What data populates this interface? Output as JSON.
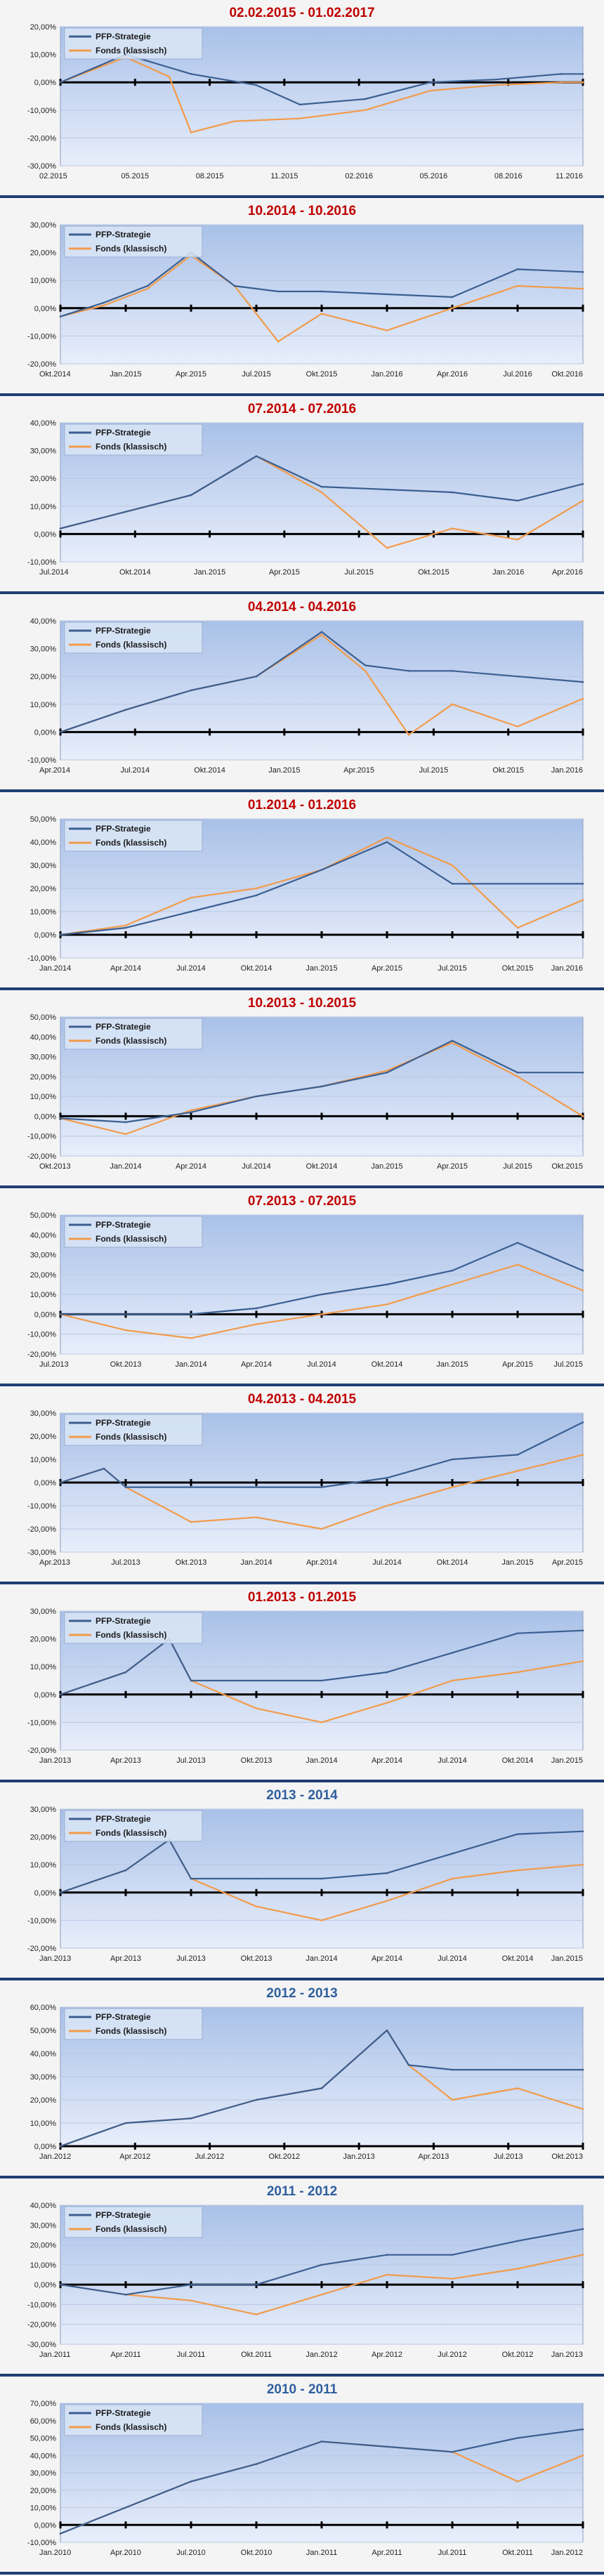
{
  "colors": {
    "strategy": "#3b5f91",
    "fund": "#f29b4b",
    "title_red": "#c00000",
    "title_blue": "#2f5f9e",
    "plot_top": "#a9c1e8",
    "plot_bottom": "#e8eefb",
    "frame": "#1f3f73"
  },
  "legend": {
    "strategy": "PFP-Strategie",
    "fund": "Fonds (klassisch)"
  },
  "chart_data": [
    {
      "type": "line",
      "title": "02.02.2015 - 01.02.2017",
      "title_color": "red",
      "ylim": [
        -30,
        20
      ],
      "ystep": 10,
      "yticks": [
        "20,00%",
        "10,00%",
        "0,00%",
        "-10,00%",
        "-20,00%",
        "-30,00%"
      ],
      "xticks": [
        "02.2015",
        "05.2015",
        "08.2015",
        "11.2015",
        "02.2016",
        "05.2016",
        "08.2016",
        "11.2016"
      ],
      "series": [
        {
          "name": "PFP-Strategie",
          "key": "strategy",
          "x": [
            0,
            3,
            6,
            9,
            11,
            14,
            17,
            20,
            23,
            24
          ],
          "values": [
            0,
            10,
            3,
            -1,
            -8,
            -6,
            0,
            1,
            3,
            3
          ]
        },
        {
          "name": "Fonds (klassisch)",
          "key": "fund",
          "x": [
            0,
            3,
            5,
            6,
            8,
            11,
            14,
            17,
            20,
            23,
            24
          ],
          "values": [
            0,
            9,
            2,
            -18,
            -14,
            -13,
            -10,
            -3,
            -1,
            0,
            0
          ]
        }
      ]
    },
    {
      "type": "line",
      "title": "10.2014 - 10.2016",
      "title_color": "red",
      "ylim": [
        -20,
        30
      ],
      "ystep": 10,
      "yticks": [
        "30,00%",
        "20,00%",
        "10,00%",
        "0,00%",
        "-10,00%",
        "-20,00%"
      ],
      "xticks": [
        "Okt.2014",
        "Jan.2015",
        "Apr.2015",
        "Jul.2015",
        "Okt.2015",
        "Jan.2016",
        "Apr.2016",
        "Jul.2016",
        "Okt.2016"
      ],
      "series": [
        {
          "name": "PFP-Strategie",
          "key": "strategy",
          "x": [
            0,
            2,
            4,
            6,
            8,
            10,
            12,
            15,
            18,
            21,
            24
          ],
          "values": [
            -3,
            2,
            8,
            20,
            8,
            6,
            6,
            5,
            4,
            14,
            13
          ]
        },
        {
          "name": "Fonds (klassisch)",
          "key": "fund",
          "x": [
            0,
            2,
            4,
            6,
            8,
            10,
            12,
            15,
            18,
            21,
            24
          ],
          "values": [
            -3,
            1,
            7,
            19,
            8,
            -12,
            -2,
            -8,
            0,
            8,
            7
          ]
        }
      ]
    },
    {
      "type": "line",
      "title": "07.2014 - 07.2016",
      "title_color": "red",
      "ylim": [
        -10,
        40
      ],
      "ystep": 10,
      "yticks": [
        "40,00%",
        "30,00%",
        "20,00%",
        "10,00%",
        "0,00%",
        "-10,00%"
      ],
      "xticks": [
        "Jul.2014",
        "Okt.2014",
        "Jan.2015",
        "Apr.2015",
        "Jul.2015",
        "Okt.2015",
        "Jan.2016",
        "Apr.2016"
      ],
      "series": [
        {
          "name": "PFP-Strategie",
          "key": "strategy",
          "x": [
            0,
            3,
            6,
            9,
            12,
            15,
            18,
            21,
            24
          ],
          "values": [
            2,
            8,
            14,
            28,
            17,
            16,
            15,
            12,
            18
          ]
        },
        {
          "name": "Fonds (klassisch)",
          "key": "fund",
          "x": [
            0,
            3,
            6,
            9,
            12,
            15,
            18,
            21,
            24
          ],
          "values": [
            2,
            8,
            14,
            28,
            15,
            -5,
            2,
            -2,
            12
          ]
        }
      ]
    },
    {
      "type": "line",
      "title": "04.2014 - 04.2016",
      "title_color": "red",
      "ylim": [
        -10,
        40
      ],
      "ystep": 10,
      "yticks": [
        "40,00%",
        "30,00%",
        "20,00%",
        "10,00%",
        "0,00%",
        "-10,00%"
      ],
      "xticks": [
        "Apr.2014",
        "Jul.2014",
        "Okt.2014",
        "Jan.2015",
        "Apr.2015",
        "Jul.2015",
        "Okt.2015",
        "Jan.2016"
      ],
      "series": [
        {
          "name": "PFP-Strategie",
          "key": "strategy",
          "x": [
            0,
            3,
            6,
            9,
            12,
            14,
            16,
            18,
            21,
            24
          ],
          "values": [
            0,
            8,
            15,
            20,
            36,
            24,
            22,
            22,
            20,
            18
          ]
        },
        {
          "name": "Fonds (klassisch)",
          "key": "fund",
          "x": [
            0,
            3,
            6,
            9,
            12,
            14,
            16,
            18,
            21,
            24
          ],
          "values": [
            0,
            8,
            15,
            20,
            35,
            22,
            -1,
            10,
            2,
            12
          ]
        }
      ]
    },
    {
      "type": "line",
      "title": "01.2014 - 01.2016",
      "title_color": "red",
      "ylim": [
        -10,
        50
      ],
      "ystep": 10,
      "yticks": [
        "50,00%",
        "40,00%",
        "30,00%",
        "20,00%",
        "10,00%",
        "0,00%",
        "-10,00%"
      ],
      "xticks": [
        "Jan.2014",
        "Apr.2014",
        "Jul.2014",
        "Okt.2014",
        "Jan.2015",
        "Apr.2015",
        "Jul.2015",
        "Okt.2015",
        "Jan.2016"
      ],
      "series": [
        {
          "name": "PFP-Strategie",
          "key": "strategy",
          "x": [
            0,
            3,
            6,
            9,
            12,
            15,
            18,
            21,
            24
          ],
          "values": [
            0,
            3,
            10,
            17,
            28,
            40,
            22,
            22,
            22
          ]
        },
        {
          "name": "Fonds (klassisch)",
          "key": "fund",
          "x": [
            0,
            3,
            6,
            9,
            12,
            15,
            18,
            21,
            24
          ],
          "values": [
            0,
            4,
            16,
            20,
            28,
            42,
            30,
            3,
            15
          ]
        }
      ]
    },
    {
      "type": "line",
      "title": "10.2013 - 10.2015",
      "title_color": "red",
      "ylim": [
        -20,
        50
      ],
      "ystep": 10,
      "yticks": [
        "50,00%",
        "40,00%",
        "30,00%",
        "20,00%",
        "10,00%",
        "0,00%",
        "-10,00%",
        "-20,00%"
      ],
      "xticks": [
        "Okt.2013",
        "Jan.2014",
        "Apr.2014",
        "Jul.2014",
        "Okt.2014",
        "Jan.2015",
        "Apr.2015",
        "Jul.2015",
        "Okt.2015"
      ],
      "series": [
        {
          "name": "PFP-Strategie",
          "key": "strategy",
          "x": [
            0,
            3,
            6,
            9,
            12,
            15,
            18,
            21,
            24
          ],
          "values": [
            -1,
            -3,
            2,
            10,
            15,
            22,
            38,
            22,
            22
          ]
        },
        {
          "name": "Fonds (klassisch)",
          "key": "fund",
          "x": [
            0,
            3,
            6,
            9,
            12,
            15,
            18,
            21,
            24
          ],
          "values": [
            -1,
            -9,
            3,
            10,
            15,
            23,
            37,
            20,
            0
          ]
        }
      ]
    },
    {
      "type": "line",
      "title": "07.2013 - 07.2015",
      "title_color": "red",
      "ylim": [
        -20,
        50
      ],
      "ystep": 10,
      "yticks": [
        "50,00%",
        "40,00%",
        "30,00%",
        "20,00%",
        "10,00%",
        "0,00%",
        "-10,00%",
        "-20,00%"
      ],
      "xticks": [
        "Jul.2013",
        "Okt.2013",
        "Jan.2014",
        "Apr.2014",
        "Jul.2014",
        "Okt.2014",
        "Jan.2015",
        "Apr.2015",
        "Jul.2015"
      ],
      "series": [
        {
          "name": "PFP-Strategie",
          "key": "strategy",
          "x": [
            0,
            3,
            6,
            9,
            12,
            15,
            18,
            21,
            24
          ],
          "values": [
            0,
            0,
            0,
            3,
            10,
            15,
            22,
            36,
            22
          ]
        },
        {
          "name": "Fonds (klassisch)",
          "key": "fund",
          "x": [
            0,
            3,
            6,
            9,
            12,
            15,
            18,
            21,
            24
          ],
          "values": [
            0,
            -8,
            -12,
            -5,
            0,
            5,
            15,
            25,
            12
          ]
        }
      ]
    },
    {
      "type": "line",
      "title": "04.2013 - 04.2015",
      "title_color": "red",
      "ylim": [
        -30,
        30
      ],
      "ystep": 10,
      "yticks": [
        "30,00%",
        "20,00%",
        "10,00%",
        "0,00%",
        "-10,00%",
        "-20,00%",
        "-30,00%"
      ],
      "xticks": [
        "Apr.2013",
        "Jul.2013",
        "Okt.2013",
        "Jan.2014",
        "Apr.2014",
        "Jul.2014",
        "Okt.2014",
        "Jan.2015",
        "Apr.2015"
      ],
      "series": [
        {
          "name": "PFP-Strategie",
          "key": "strategy",
          "x": [
            0,
            2,
            3,
            6,
            9,
            12,
            15,
            18,
            21,
            24
          ],
          "values": [
            0,
            6,
            -2,
            -2,
            -2,
            -2,
            2,
            10,
            12,
            26
          ]
        },
        {
          "name": "Fonds (klassisch)",
          "key": "fund",
          "x": [
            0,
            2,
            3,
            6,
            9,
            12,
            15,
            18,
            21,
            24
          ],
          "values": [
            0,
            6,
            -2,
            -17,
            -15,
            -20,
            -10,
            -2,
            5,
            12
          ]
        }
      ]
    },
    {
      "type": "line",
      "title": "01.2013 - 01.2015",
      "title_color": "red",
      "ylim": [
        -20,
        30
      ],
      "ystep": 10,
      "yticks": [
        "30,00%",
        "20,00%",
        "10,00%",
        "0,00%",
        "-10,00%",
        "-20,00%"
      ],
      "xticks": [
        "Jan.2013",
        "Apr.2013",
        "Jul.2013",
        "Okt.2013",
        "Jan.2014",
        "Apr.2014",
        "Jul.2014",
        "Okt.2014",
        "Jan.2015"
      ],
      "series": [
        {
          "name": "PFP-Strategie",
          "key": "strategy",
          "x": [
            0,
            3,
            5,
            6,
            9,
            12,
            15,
            18,
            21,
            24
          ],
          "values": [
            0,
            8,
            20,
            5,
            5,
            5,
            8,
            15,
            22,
            23
          ]
        },
        {
          "name": "Fonds (klassisch)",
          "key": "fund",
          "x": [
            0,
            3,
            5,
            6,
            9,
            12,
            15,
            18,
            21,
            24
          ],
          "values": [
            0,
            8,
            20,
            5,
            -5,
            -10,
            -3,
            5,
            8,
            12
          ]
        }
      ]
    },
    {
      "type": "line",
      "title": "2013 - 2014",
      "title_color": "blue",
      "ylim": [
        -20,
        30
      ],
      "ystep": 10,
      "yticks": [
        "30,00%",
        "20,00%",
        "10,00%",
        "0,00%",
        "-10,00%",
        "-20,00%"
      ],
      "xticks": [
        "Jan.2013",
        "Apr.2013",
        "Jul.2013",
        "Okt.2013",
        "Jan.2014",
        "Apr.2014",
        "Jul.2014",
        "Okt.2014",
        "Jan.2015"
      ],
      "series": [
        {
          "name": "PFP-Strategie",
          "key": "strategy",
          "x": [
            0,
            3,
            5,
            6,
            9,
            12,
            15,
            18,
            21,
            24
          ],
          "values": [
            0,
            8,
            19,
            5,
            5,
            5,
            7,
            14,
            21,
            22
          ]
        },
        {
          "name": "Fonds (klassisch)",
          "key": "fund",
          "x": [
            0,
            3,
            5,
            6,
            9,
            12,
            15,
            18,
            21,
            24
          ],
          "values": [
            0,
            8,
            19,
            5,
            -5,
            -10,
            -3,
            5,
            8,
            10
          ]
        }
      ]
    },
    {
      "type": "line",
      "title": "2012 - 2013",
      "title_color": "blue",
      "ylim": [
        0,
        60
      ],
      "ystep": 10,
      "yticks": [
        "60,00%",
        "50,00%",
        "40,00%",
        "30,00%",
        "20,00%",
        "10,00%",
        "0,00%"
      ],
      "xticks": [
        "Jan.2012",
        "Apr.2012",
        "Jul.2012",
        "Okt.2012",
        "Jan.2013",
        "Apr.2013",
        "Jul.2013",
        "Okt.2013"
      ],
      "series": [
        {
          "name": "PFP-Strategie",
          "key": "strategy",
          "x": [
            0,
            3,
            6,
            9,
            12,
            15,
            16,
            18,
            21,
            24
          ],
          "values": [
            0,
            10,
            12,
            20,
            25,
            50,
            35,
            33,
            33,
            33
          ]
        },
        {
          "name": "Fonds (klassisch)",
          "key": "fund",
          "x": [
            0,
            3,
            6,
            9,
            12,
            15,
            16,
            18,
            21,
            24
          ],
          "values": [
            0,
            10,
            12,
            20,
            25,
            50,
            35,
            20,
            25,
            16
          ]
        }
      ]
    },
    {
      "type": "line",
      "title": "2011 - 2012",
      "title_color": "blue",
      "ylim": [
        -30,
        40
      ],
      "ystep": 10,
      "yticks": [
        "40,00%",
        "30,00%",
        "20,00%",
        "10,00%",
        "0,00%",
        "-10,00%",
        "-20,00%",
        "-30,00%"
      ],
      "xticks": [
        "Jan.2011",
        "Apr.2011",
        "Jul.2011",
        "Okt.2011",
        "Jan.2012",
        "Apr.2012",
        "Jul.2012",
        "Okt.2012",
        "Jan.2013"
      ],
      "series": [
        {
          "name": "PFP-Strategie",
          "key": "strategy",
          "x": [
            0,
            3,
            6,
            9,
            12,
            15,
            18,
            21,
            24
          ],
          "values": [
            0,
            -5,
            0,
            0,
            10,
            15,
            15,
            22,
            28
          ]
        },
        {
          "name": "Fonds (klassisch)",
          "key": "fund",
          "x": [
            0,
            3,
            6,
            9,
            12,
            15,
            18,
            21,
            24
          ],
          "values": [
            0,
            -5,
            -8,
            -15,
            -5,
            5,
            3,
            8,
            15
          ]
        }
      ]
    },
    {
      "type": "line",
      "title": "2010 - 2011",
      "title_color": "blue",
      "ylim": [
        -10,
        70
      ],
      "ystep": 10,
      "yticks": [
        "70,00%",
        "60,00%",
        "50,00%",
        "40,00%",
        "30,00%",
        "20,00%",
        "10,00%",
        "0,00%",
        "-10,00%"
      ],
      "xticks": [
        "Jan.2010",
        "Apr.2010",
        "Jul.2010",
        "Okt.2010",
        "Jan.2011",
        "Apr.2011",
        "Jul.2011",
        "Okt.2011",
        "Jan.2012"
      ],
      "series": [
        {
          "name": "PFP-Strategie",
          "key": "strategy",
          "x": [
            0,
            3,
            6,
            9,
            12,
            15,
            18,
            21,
            24
          ],
          "values": [
            -5,
            10,
            25,
            35,
            48,
            45,
            42,
            50,
            55
          ]
        },
        {
          "name": "Fonds (klassisch)",
          "key": "fund",
          "x": [
            0,
            3,
            6,
            9,
            12,
            15,
            18,
            21,
            24
          ],
          "values": [
            -5,
            10,
            25,
            35,
            48,
            45,
            42,
            25,
            40
          ]
        }
      ]
    }
  ]
}
